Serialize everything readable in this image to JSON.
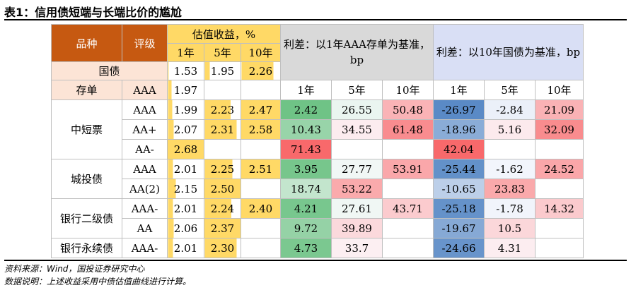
{
  "title": "表1：信用债短端与长端比价的尴尬",
  "header": {
    "variety": "品种",
    "rating": "评级",
    "yield_group": "估值收益，%",
    "spread_ck": "利差：以1年AAA存单为基准，bp",
    "spread_gov": "利差：以10年国债为基准，bp",
    "terms": [
      "1年",
      "5年",
      "10年"
    ]
  },
  "gov_row": {
    "label": "国债",
    "y": [
      "1.53",
      "1.95",
      "2.26"
    ],
    "yf": [
      0.02,
      0.14,
      0.82
    ]
  },
  "cd_row": {
    "label": "存单",
    "rating": "AAA",
    "y1": "1.97",
    "y1f": 0.1
  },
  "groups": [
    {
      "name": "中短票",
      "rows": [
        {
          "rating": "AAA",
          "y": [
            "1.99",
            "2.23",
            "2.47"
          ],
          "yf": [
            0.12,
            0.72,
            1.0
          ],
          "s1": [
            "2.42",
            "26.55",
            "50.48"
          ],
          "s2": [
            "-26.97",
            "-2.84",
            "21.09"
          ]
        },
        {
          "rating": "AA+",
          "y": [
            "2.07",
            "2.31",
            "2.58"
          ],
          "yf": [
            0.16,
            0.88,
            1.0
          ],
          "s1": [
            "10.43",
            "34.55",
            "61.48"
          ],
          "s2": [
            "-18.96",
            "5.16",
            "32.09"
          ]
        },
        {
          "rating": "AA-",
          "y": [
            "2.68",
            "",
            ""
          ],
          "yf": [
            1.0,
            0,
            0
          ],
          "s1": [
            "71.43",
            "",
            ""
          ],
          "s2": [
            "42.04",
            "",
            ""
          ]
        }
      ]
    },
    {
      "name": "城投债",
      "rows": [
        {
          "rating": "AAA",
          "y": [
            "2.01",
            "2.25",
            "2.51"
          ],
          "yf": [
            0.14,
            0.76,
            1.0
          ],
          "s1": [
            "3.95",
            "27.77",
            "53.91"
          ],
          "s2": [
            "-25.44",
            "-1.62",
            "24.52"
          ]
        },
        {
          "rating": "AA(2)",
          "y": [
            "2.15",
            "2.50",
            ""
          ],
          "yf": [
            0.22,
            1.0,
            0
          ],
          "s1": [
            "18.74",
            "53.22",
            ""
          ],
          "s2": [
            "-10.65",
            "23.83",
            ""
          ]
        }
      ]
    },
    {
      "name": "银行二级债",
      "rows": [
        {
          "rating": "AAA-",
          "y": [
            "2.01",
            "2.24",
            "2.40"
          ],
          "yf": [
            0.14,
            0.74,
            1.0
          ],
          "s1": [
            "4.21",
            "27.61",
            "43.71"
          ],
          "s2": [
            "-25.18",
            "-1.78",
            "14.32"
          ]
        },
        {
          "rating": "AA",
          "y": [
            "2.06",
            "2.37",
            ""
          ],
          "yf": [
            0.16,
            1.0,
            0
          ],
          "s1": [
            "9.72",
            "39.89",
            ""
          ],
          "s2": [
            "-19.67",
            "10.5",
            ""
          ]
        }
      ]
    },
    {
      "name": "银行永续债",
      "rows": [
        {
          "rating": "AAA-",
          "y": [
            "2.01",
            "2.30",
            ""
          ],
          "yf": [
            0.14,
            0.88,
            0
          ],
          "s1": [
            "4.73",
            "33.7",
            ""
          ],
          "s2": [
            "-24.66",
            "4.31",
            ""
          ]
        }
      ]
    }
  ],
  "source": "资料来源：Wind，国投证券研究中心",
  "note": "数据说明：上述收益采用中债估值曲线进行计算。"
}
